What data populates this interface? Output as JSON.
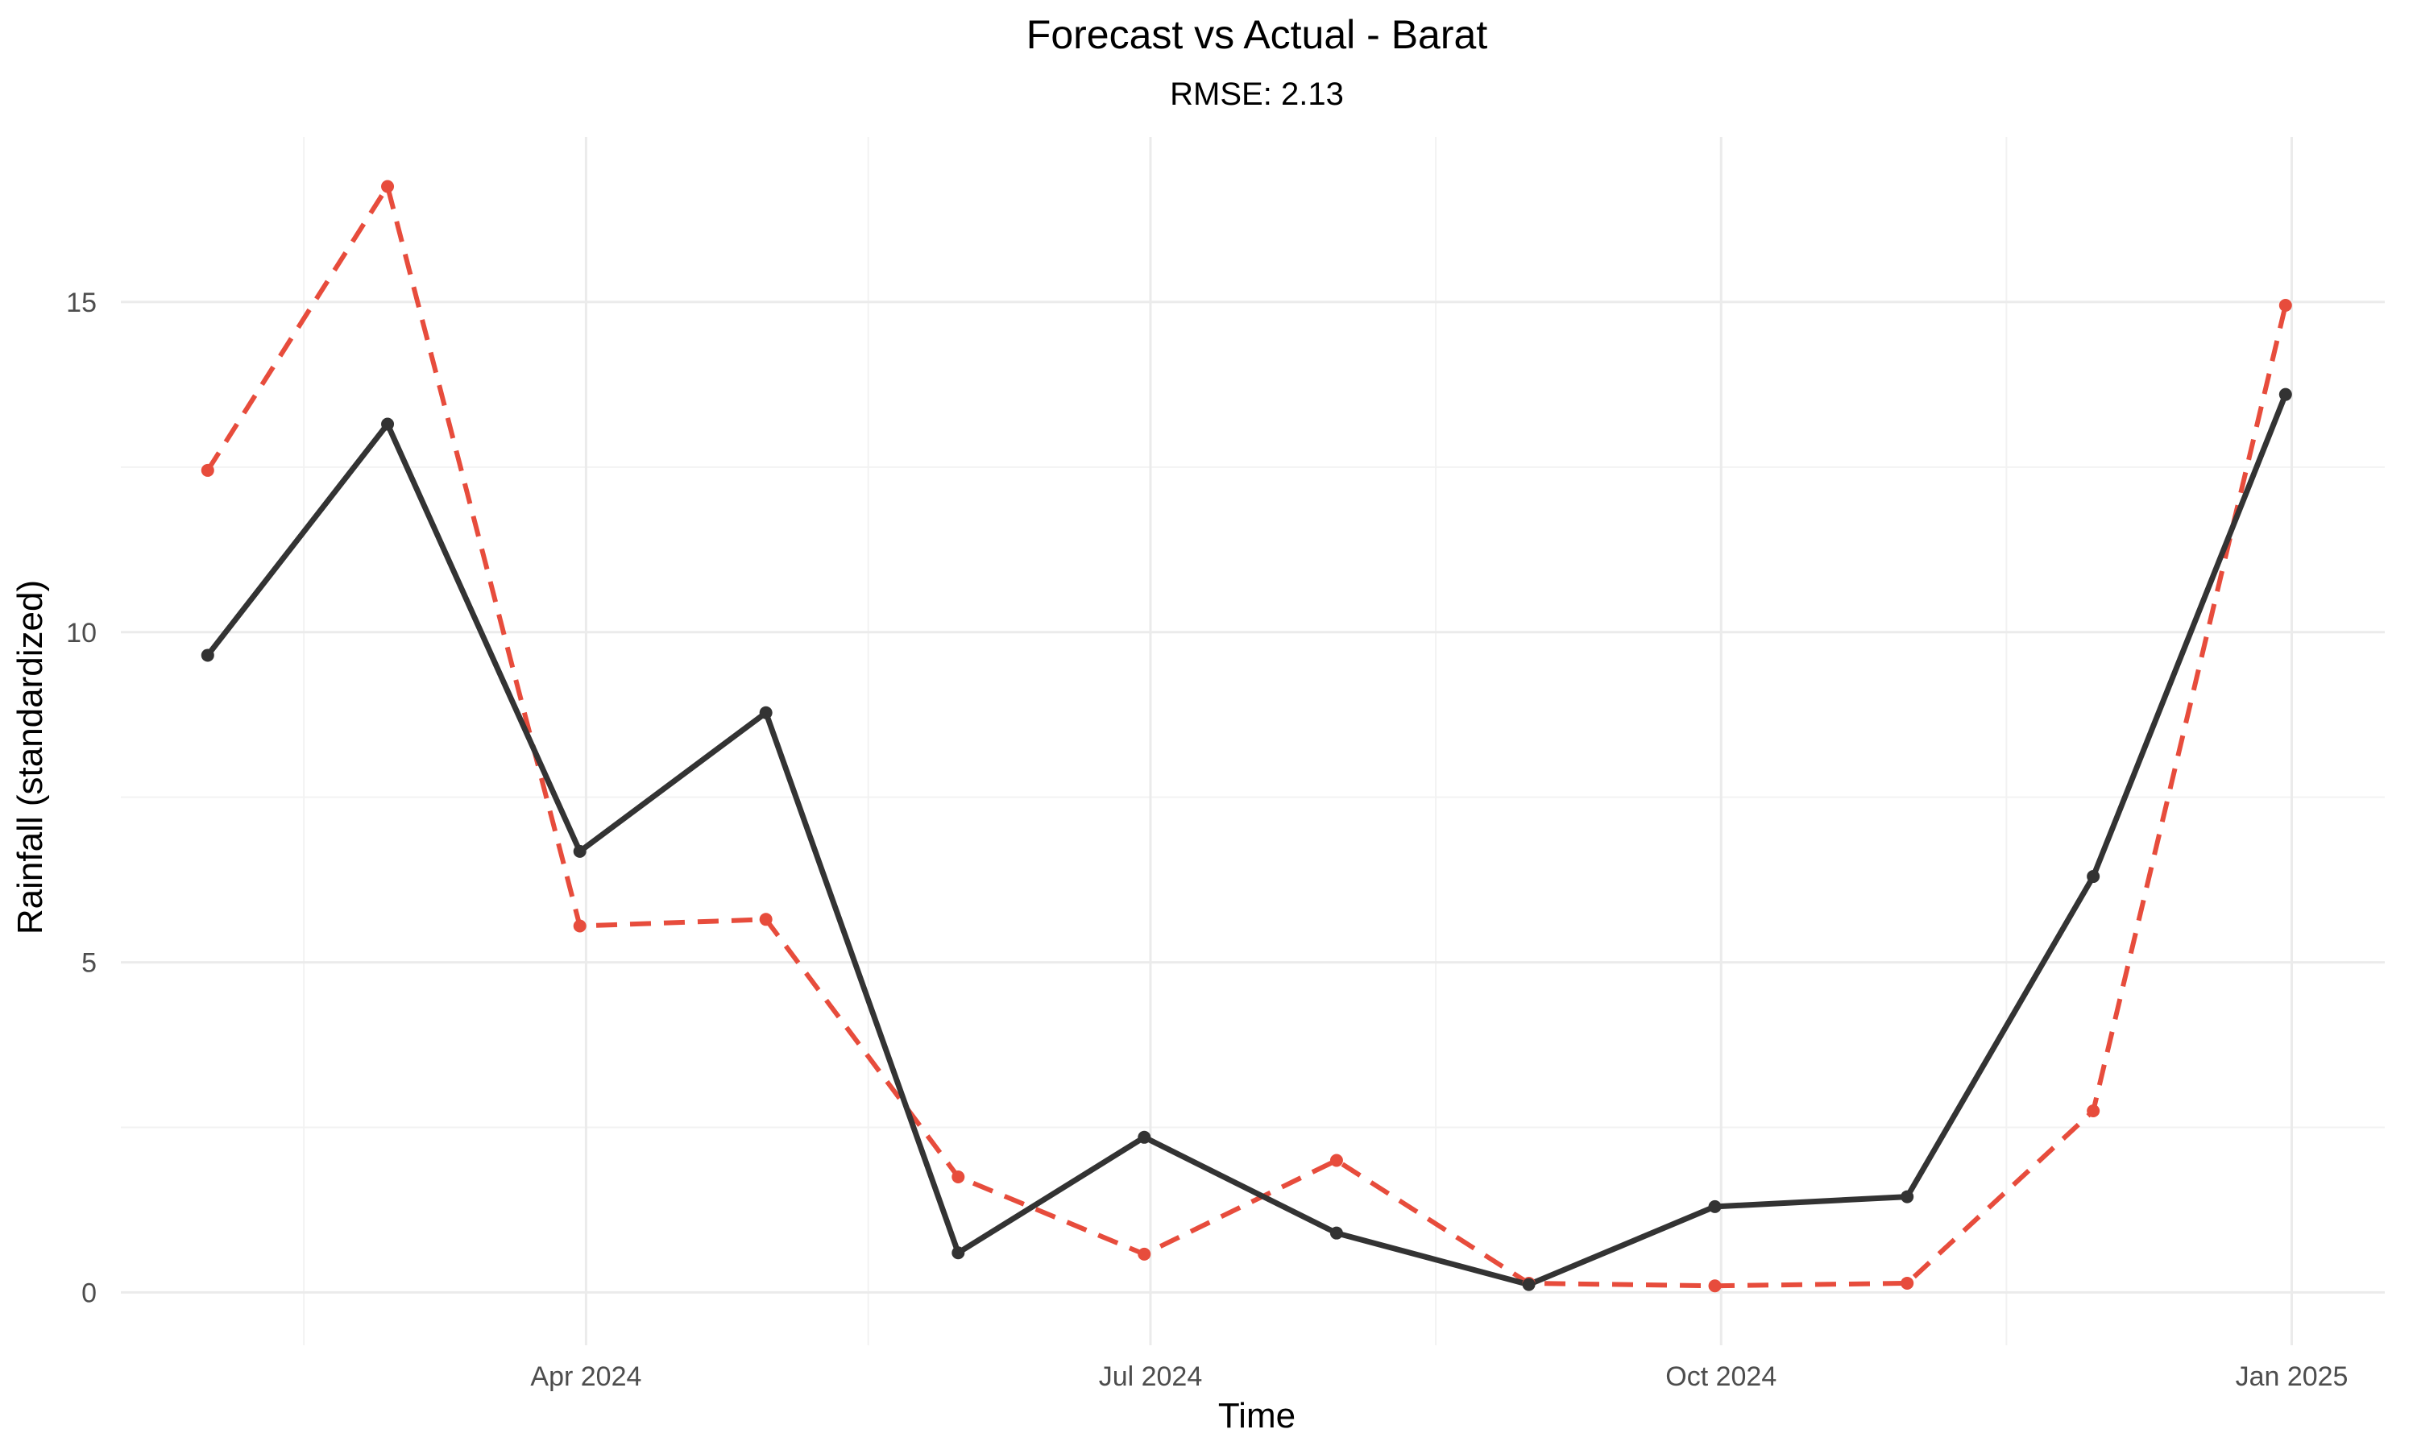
{
  "chart_data": {
    "type": "line",
    "title": "Forecast vs Actual - Barat",
    "subtitle": "RMSE: 2.13",
    "xlabel": "Time",
    "ylabel": "Rainfall (standardized)",
    "x_tick_labels": [
      {
        "date": "2024-04-01",
        "label": "Apr 2024"
      },
      {
        "date": "2024-07-01",
        "label": "Jul 2024"
      },
      {
        "date": "2024-10-01",
        "label": "Oct 2024"
      },
      {
        "date": "2025-01-01",
        "label": "Jan 2025"
      }
    ],
    "y_ticks": [
      0,
      5,
      10,
      15
    ],
    "xlim": [
      "2024-01-17",
      "2025-01-16"
    ],
    "ylim": [
      -0.8,
      17.5
    ],
    "grid": true,
    "legend": "none",
    "x": [
      "2024-01-31",
      "2024-02-29",
      "2024-03-31",
      "2024-04-30",
      "2024-05-31",
      "2024-06-30",
      "2024-07-31",
      "2024-08-31",
      "2024-09-30",
      "2024-10-31",
      "2024-11-30",
      "2024-12-31"
    ],
    "series": [
      {
        "color": "#e74c3c",
        "line_style": "dashed",
        "values": [
          12.45,
          16.75,
          5.55,
          5.65,
          1.75,
          0.58,
          2.0,
          0.14,
          0.1,
          0.14,
          2.75,
          14.95
        ]
      },
      {
        "color": "#333333",
        "line_style": "solid",
        "values": [
          9.65,
          13.15,
          6.68,
          8.78,
          0.6,
          2.35,
          0.9,
          0.12,
          1.3,
          1.45,
          6.3,
          13.6
        ]
      }
    ]
  }
}
